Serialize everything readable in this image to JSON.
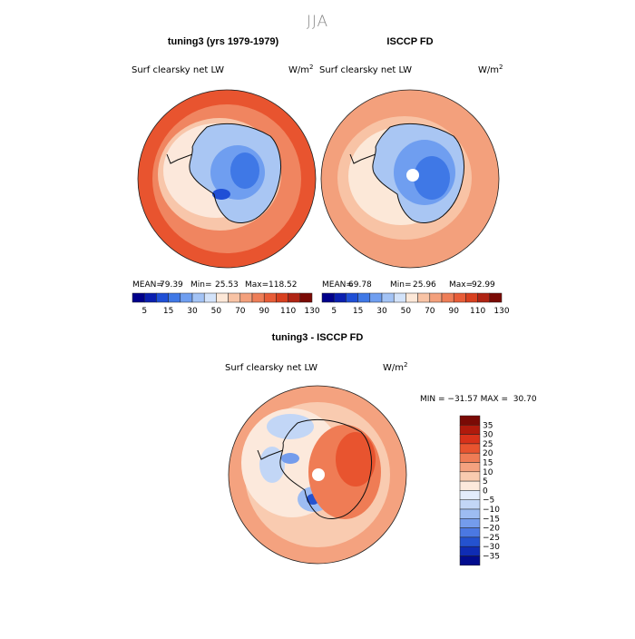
{
  "page": {
    "title": "JJA"
  },
  "panels": [
    {
      "title": "tuning3 (yrs 1979-1979)",
      "variable": "Surf clearsky net LW",
      "units_base": "W/m",
      "units_exp": "2",
      "stats": {
        "mean_label": "MEAN=",
        "mean": "79.39",
        "min_label": "Min=",
        "min": "25.53",
        "max_label": "Max=",
        "max": "118.52"
      }
    },
    {
      "title": "ISCCP FD",
      "variable": "Surf clearsky net LW",
      "units_base": "W/m",
      "units_exp": "2",
      "stats": {
        "mean_label": "MEAN=",
        "mean": "69.78",
        "min_label": "Min=",
        "min": "25.96",
        "max_label": "Max=",
        "max": "92.99"
      }
    },
    {
      "title": "tuning3 - ISCCP FD",
      "variable": "Surf clearsky net LW",
      "units_base": "W/m",
      "units_exp": "2",
      "stats": {
        "minmax_text": "MIN = −31.57 MAX =  30.70"
      }
    }
  ],
  "colorbars": {
    "absolute": {
      "colors": [
        "#00008b",
        "#0a1fb0",
        "#1f4fd6",
        "#3f78e6",
        "#6f9ef0",
        "#a3c3f5",
        "#d3e3fa",
        "#fde8d8",
        "#f8c3a5",
        "#f3a07c",
        "#ee7e58",
        "#e85d38",
        "#d8401f",
        "#b02414",
        "#7a0a05"
      ],
      "tick_labels": [
        "5",
        "15",
        "30",
        "50",
        "70",
        "90",
        "110",
        "130"
      ]
    },
    "difference": {
      "colors": [
        "#7a0a05",
        "#b01a0c",
        "#d8321a",
        "#e8542f",
        "#ef7c55",
        "#f4a27f",
        "#f9cbb0",
        "#fce9dc",
        "#e3ecfb",
        "#c2d6f6",
        "#9dbcf2",
        "#749cec",
        "#4b78e2",
        "#2452cf",
        "#0f2cb4",
        "#020c8e"
      ],
      "tick_labels": [
        "35",
        "30",
        "25",
        "20",
        "15",
        "10",
        "5",
        "0",
        "−5",
        "−10",
        "−15",
        "−20",
        "−25",
        "−30",
        "−35"
      ]
    }
  },
  "chart_data": [
    {
      "type": "heatmap",
      "title": "tuning3 (yrs 1979-1979)",
      "subtitle": "Surf clearsky net LW",
      "units": "W/m^2",
      "projection": "south polar stereographic",
      "season": "JJA",
      "mean": 79.39,
      "min": 25.53,
      "max": 118.52,
      "levels": [
        5,
        15,
        30,
        50,
        70,
        90,
        110,
        130
      ]
    },
    {
      "type": "heatmap",
      "title": "ISCCP FD",
      "subtitle": "Surf clearsky net LW",
      "units": "W/m^2",
      "projection": "south polar stereographic",
      "season": "JJA",
      "mean": 69.78,
      "min": 25.96,
      "max": 92.99,
      "levels": [
        5,
        15,
        30,
        50,
        70,
        90,
        110,
        130
      ]
    },
    {
      "type": "heatmap",
      "title": "tuning3 - ISCCP FD",
      "subtitle": "Surf clearsky net LW",
      "units": "W/m^2",
      "projection": "south polar stereographic",
      "season": "JJA",
      "min": -31.57,
      "max": 30.7,
      "levels": [
        -35,
        -30,
        -25,
        -20,
        -15,
        -10,
        -5,
        0,
        5,
        10,
        15,
        20,
        25,
        30,
        35
      ]
    }
  ]
}
